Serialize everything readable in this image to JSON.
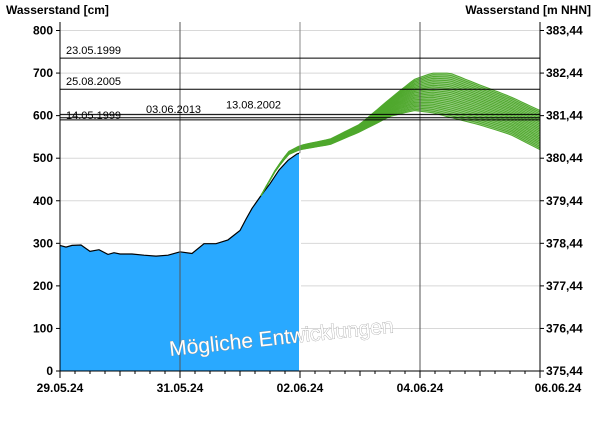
{
  "chart_data": {
    "type": "line",
    "title": "",
    "ylabel_left": "Wasserstand [cm]",
    "ylabel_right": "Wasserstand [m NHN]",
    "ylim_left": [
      0,
      820
    ],
    "ylim_right": [
      375.44,
      383.64
    ],
    "left_ticks": [
      "0",
      "100",
      "200",
      "300",
      "400",
      "500",
      "600",
      "700",
      "800"
    ],
    "right_ticks": [
      "375,44",
      "376,44",
      "377,44",
      "378,44",
      "379,44",
      "380,44",
      "381,44",
      "382,44",
      "383,44"
    ],
    "x_ticks": [
      "29.05.24",
      "31.05.24",
      "02.06.24",
      "04.06.24",
      "06.06.24"
    ],
    "x_range_days": [
      0,
      8
    ],
    "watermark": "Mögliche Entwicklungen",
    "colors": {
      "measured": "#29a9ff",
      "forecast": "#4fa82d",
      "grid": "#d8d8d8"
    },
    "historic_levels": [
      {
        "label": "23.05.1999",
        "value": 735
      },
      {
        "label": "25.08.2005",
        "value": 662
      },
      {
        "label": "14.05.1999",
        "value": 590
      },
      {
        "label": "03.06.2013",
        "value": 595
      },
      {
        "label": "13.08.2002",
        "value": 603
      }
    ],
    "measured": {
      "x": [
        0,
        0.1,
        0.2,
        0.35,
        0.5,
        0.65,
        0.8,
        0.9,
        1.0,
        1.1,
        1.2,
        1.4,
        1.6,
        1.8,
        2.0,
        2.2,
        2.4,
        2.6,
        2.8,
        3.0,
        3.1,
        3.2,
        3.35,
        3.5,
        3.65,
        3.8,
        3.95,
        4.0
      ],
      "y": [
        295,
        291,
        295,
        296,
        281,
        285,
        274,
        278,
        275,
        275,
        275,
        272,
        270,
        272,
        280,
        276,
        299,
        299,
        308,
        330,
        357,
        382,
        412,
        440,
        472,
        495,
        510,
        512
      ]
    },
    "forecast": {
      "x_start": 3.35,
      "band_upper": {
        "x": [
          3.35,
          3.6,
          3.8,
          4.0,
          4.5,
          5.0,
          5.5,
          5.9,
          6.2,
          6.5,
          7.0,
          7.5,
          8.0
        ],
        "y": [
          412,
          475,
          515,
          530,
          545,
          580,
          640,
          685,
          700,
          700,
          672,
          645,
          612
        ]
      },
      "band_lower": {
        "x": [
          3.35,
          3.6,
          3.8,
          4.0,
          4.5,
          5.0,
          5.5,
          5.9,
          6.2,
          6.5,
          7.0,
          7.5,
          8.0
        ],
        "y": [
          412,
          472,
          508,
          520,
          532,
          562,
          598,
          612,
          607,
          596,
          578,
          556,
          520
        ]
      }
    }
  }
}
